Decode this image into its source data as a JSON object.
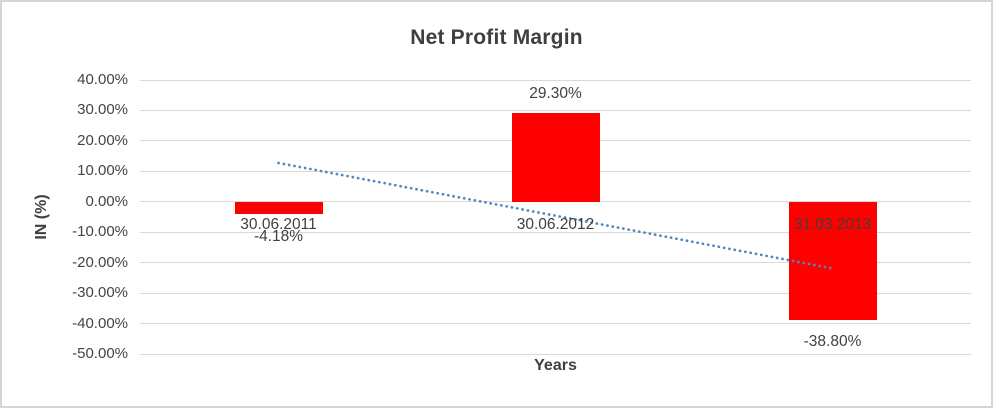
{
  "chart": {
    "title": "Net Profit Margin",
    "y_axis_title": "IN (%)",
    "x_axis_title": "Years"
  },
  "chart_data": {
    "type": "bar",
    "title": "Net Profit Margin",
    "xlabel": "Years",
    "ylabel": "IN (%)",
    "categories": [
      "30.06.2011",
      "30.06.2012",
      "31.03.2013"
    ],
    "values": [
      -4.18,
      29.3,
      -38.8
    ],
    "data_labels": [
      "-4.18%",
      "29.30%",
      "-38.80%"
    ],
    "ylim": [
      -50,
      40
    ],
    "grid": true,
    "legend": "none",
    "yticks": [
      {
        "value": 40,
        "label": "40.00%"
      },
      {
        "value": 30,
        "label": "30.00%"
      },
      {
        "value": 20,
        "label": "20.00%"
      },
      {
        "value": 10,
        "label": "10.00%"
      },
      {
        "value": 0,
        "label": "0.00%"
      },
      {
        "value": -10,
        "label": "-10.00%"
      },
      {
        "value": -20,
        "label": "-20.00%"
      },
      {
        "value": -30,
        "label": "-30.00%"
      },
      {
        "value": -40,
        "label": "-40.00%"
      },
      {
        "value": -50,
        "label": "-50.00%"
      }
    ],
    "trendline": {
      "type": "linear",
      "style": "dotted",
      "start_value": 12.75,
      "end_value": -21.9
    },
    "colors": {
      "bar": "#fe0000",
      "trendline": "#4e86c0",
      "gridline": "#d9d9d9",
      "text": "#404040",
      "border": "#d5d5d5"
    }
  }
}
